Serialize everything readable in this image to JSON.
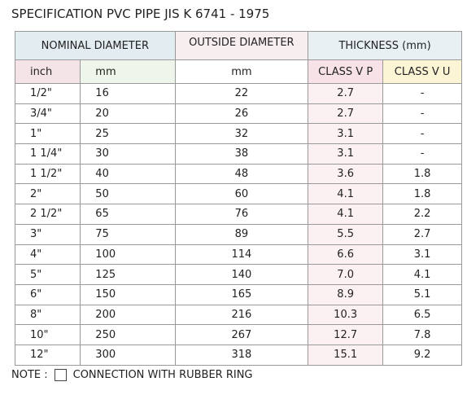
{
  "title": "SPECIFICATION PVC PIPE JIS K 6741 - 1975",
  "table": {
    "header": {
      "nominal": "NOMINAL DIAMETER",
      "outside": "OUTSIDE DIAMETER",
      "thickness": "THICKNESS (mm)",
      "inch": "inch",
      "mm": "mm",
      "outside_unit": "mm",
      "class_vp": "CLASS V P",
      "class_vu": "CLASS V U"
    },
    "rows": [
      [
        "1/2\"",
        "16",
        "22",
        "2.7",
        "-"
      ],
      [
        "3/4\"",
        "20",
        "26",
        "2.7",
        "-"
      ],
      [
        "1\"",
        "25",
        "32",
        "3.1",
        "-"
      ],
      [
        "1 1/4\"",
        "30",
        "38",
        "3.1",
        "-"
      ],
      [
        "1 1/2\"",
        "40",
        "48",
        "3.6",
        "1.8"
      ],
      [
        "2\"",
        "50",
        "60",
        "4.1",
        "1.8"
      ],
      [
        "2 1/2\"",
        "65",
        "76",
        "4.1",
        "2.2"
      ],
      [
        "3\"",
        "75",
        "89",
        "5.5",
        "2.7"
      ],
      [
        "4\"",
        "100",
        "114",
        "6.6",
        "3.1"
      ],
      [
        "5\"",
        "125",
        "140",
        "7.0",
        "4.1"
      ],
      [
        "6\"",
        "150",
        "165",
        "8.9",
        "5.1"
      ],
      [
        "8\"",
        "200",
        "216",
        "10.3",
        "6.5"
      ],
      [
        "10\"",
        "250",
        "267",
        "12.7",
        "7.8"
      ],
      [
        "12\"",
        "300",
        "318",
        "15.1",
        "9.2"
      ]
    ]
  },
  "note": {
    "label": "NOTE :",
    "text": "CONNECTION WITH RUBBER RING"
  }
}
